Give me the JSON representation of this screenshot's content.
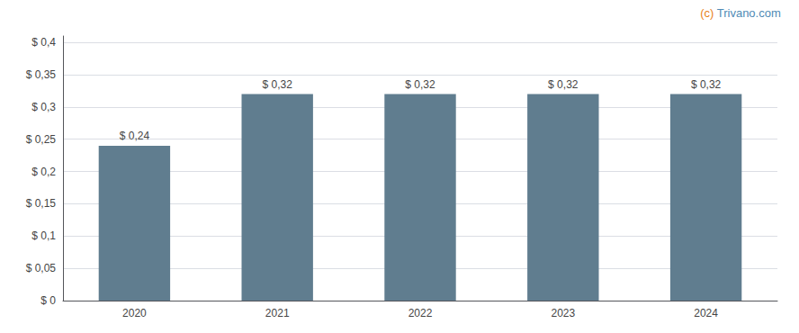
{
  "chart_data": {
    "type": "bar",
    "categories": [
      "2020",
      "2021",
      "2022",
      "2023",
      "2024"
    ],
    "values": [
      0.24,
      0.32,
      0.32,
      0.32,
      0.32
    ],
    "value_labels": [
      "$ 0,24",
      "$ 0,32",
      "$ 0,32",
      "$ 0,32",
      "$ 0,32"
    ],
    "color": "#607d8f",
    "data_labels": true,
    "grid": true,
    "ylim": [
      0,
      0.41
    ],
    "yticks": [
      {
        "value": 0,
        "label": "$ 0"
      },
      {
        "value": 0.05,
        "label": "$ 0,05"
      },
      {
        "value": 0.1,
        "label": "$ 0,1"
      },
      {
        "value": 0.15,
        "label": "$ 0,15"
      },
      {
        "value": 0.2,
        "label": "$ 0,2"
      },
      {
        "value": 0.25,
        "label": "$ 0,25"
      },
      {
        "value": 0.3,
        "label": "$ 0,3"
      },
      {
        "value": 0.35,
        "label": "$ 0,35"
      },
      {
        "value": 0.4,
        "label": "$ 0,4"
      }
    ],
    "annotations": [
      {
        "text": "(c)",
        "color": "#e8821a"
      },
      {
        "text": " Trivano.com",
        "color": "#4f8ab5"
      }
    ]
  }
}
